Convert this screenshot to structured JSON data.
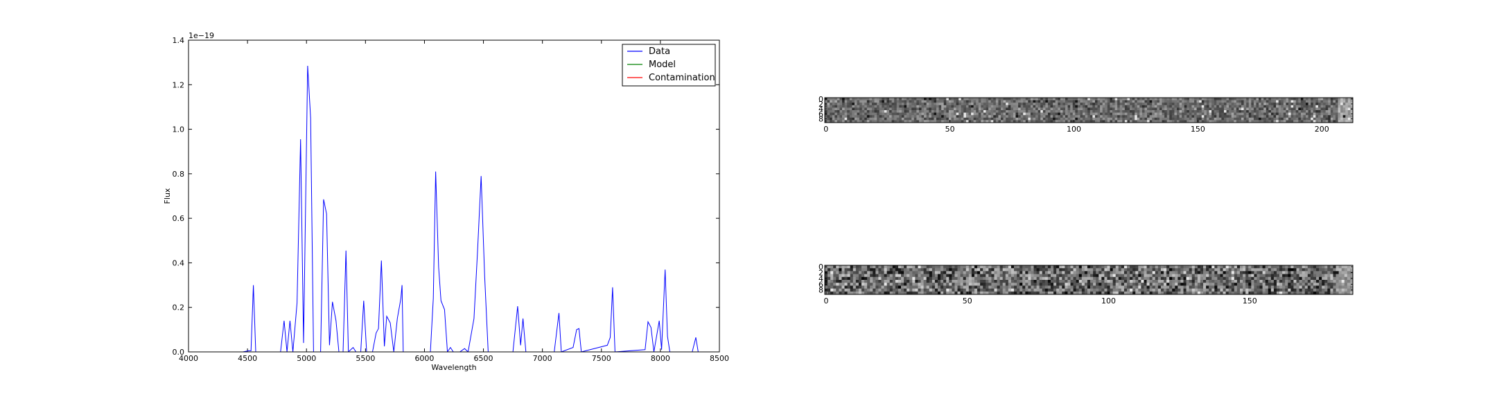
{
  "chart_data": [
    {
      "type": "line",
      "title": "",
      "xlabel": "Wavelength",
      "ylabel": "Flux",
      "offset_text": "1e−19",
      "xlim": [
        4000,
        8500
      ],
      "ylim": [
        0,
        1.4
      ],
      "x_ticks": [
        4000,
        4500,
        5000,
        5500,
        6000,
        6500,
        7000,
        7500,
        8000,
        8500
      ],
      "y_ticks": [
        0.0,
        0.2,
        0.4,
        0.6,
        0.8,
        1.0,
        1.2,
        1.4
      ],
      "x_tick_labels": [
        "4000",
        "4500",
        "5000",
        "5500",
        "6000",
        "6500",
        "7000",
        "7500",
        "8000",
        "8500"
      ],
      "y_tick_labels": [
        "0.0",
        "0.2",
        "0.4",
        "0.6",
        "0.8",
        "1.0",
        "1.2",
        "1.4"
      ],
      "grid": false,
      "legend_position": "top-right",
      "legend": [
        {
          "label": "Data",
          "color": "#0000ff"
        },
        {
          "label": "Model",
          "color": "#008000"
        },
        {
          "label": "Contamination",
          "color": "#ff0000"
        }
      ],
      "series": [
        {
          "name": "Data",
          "color": "#0000ff",
          "points": [
            [
              4460,
              0
            ],
            [
              4510,
              0.005
            ],
            [
              4530,
              0.005
            ],
            [
              4550,
              0.3
            ],
            [
              4570,
              0
            ],
            [
              4780,
              0
            ],
            [
              4810,
              0.14
            ],
            [
              4835,
              0
            ],
            [
              4860,
              0.14
            ],
            [
              4885,
              0
            ],
            [
              4920,
              0.22
            ],
            [
              4950,
              0.955
            ],
            [
              4975,
              0.04
            ],
            [
              5010,
              1.285
            ],
            [
              5035,
              1.05
            ],
            [
              5060,
              0
            ],
            [
              5120,
              0
            ],
            [
              5145,
              0.685
            ],
            [
              5170,
              0.62
            ],
            [
              5195,
              0.03
            ],
            [
              5220,
              0.225
            ],
            [
              5250,
              0.14
            ],
            [
              5275,
              0
            ],
            [
              5310,
              0
            ],
            [
              5335,
              0.455
            ],
            [
              5355,
              0
            ],
            [
              5395,
              0.02
            ],
            [
              5420,
              0
            ],
            [
              5460,
              0
            ],
            [
              5485,
              0.23
            ],
            [
              5510,
              0
            ],
            [
              5560,
              0
            ],
            [
              5590,
              0.085
            ],
            [
              5610,
              0.105
            ],
            [
              5635,
              0.41
            ],
            [
              5660,
              0.025
            ],
            [
              5680,
              0.16
            ],
            [
              5710,
              0.13
            ],
            [
              5740,
              0
            ],
            [
              5770,
              0.15
            ],
            [
              5800,
              0.24
            ],
            [
              5810,
              0.3
            ],
            [
              5820,
              0
            ],
            [
              6050,
              0
            ],
            [
              6075,
              0.24
            ],
            [
              6095,
              0.81
            ],
            [
              6120,
              0.38
            ],
            [
              6140,
              0.23
            ],
            [
              6170,
              0.19
            ],
            [
              6195,
              0
            ],
            [
              6220,
              0.02
            ],
            [
              6245,
              0
            ],
            [
              6300,
              0
            ],
            [
              6340,
              0.015
            ],
            [
              6370,
              0
            ],
            [
              6420,
              0.15
            ],
            [
              6450,
              0.45
            ],
            [
              6480,
              0.79
            ],
            [
              6510,
              0.34
            ],
            [
              6540,
              0
            ],
            [
              6750,
              0
            ],
            [
              6790,
              0.205
            ],
            [
              6815,
              0.03
            ],
            [
              6835,
              0.15
            ],
            [
              6860,
              0
            ],
            [
              7100,
              0
            ],
            [
              7140,
              0.175
            ],
            [
              7160,
              0
            ],
            [
              7260,
              0.02
            ],
            [
              7290,
              0.1
            ],
            [
              7310,
              0.105
            ],
            [
              7330,
              0
            ],
            [
              7550,
              0.03
            ],
            [
              7575,
              0.065
            ],
            [
              7595,
              0.29
            ],
            [
              7615,
              0
            ],
            [
              7870,
              0.01
            ],
            [
              7895,
              0.135
            ],
            [
              7920,
              0.11
            ],
            [
              7945,
              0
            ],
            [
              7990,
              0.14
            ],
            [
              8010,
              0.01
            ],
            [
              8040,
              0.37
            ],
            [
              8060,
              0.07
            ],
            [
              8080,
              0
            ],
            [
              8270,
              0
            ],
            [
              8300,
              0.065
            ],
            [
              8320,
              0
            ],
            [
              8500,
              0
            ]
          ]
        }
      ]
    },
    {
      "type": "heatmap",
      "colormap": "gray",
      "x_ticks": [
        0,
        50,
        100,
        150,
        200
      ],
      "x_tick_labels": [
        "0",
        "50",
        "100",
        "150",
        "200"
      ],
      "xlim": [
        0,
        213
      ],
      "y_ticks": [
        0,
        2,
        4,
        6,
        8
      ],
      "y_tick_labels": [
        "0",
        "2",
        "4",
        "6",
        "8"
      ],
      "ylim": [
        0,
        10
      ]
    },
    {
      "type": "heatmap",
      "colormap": "gray",
      "x_ticks": [
        0,
        50,
        100,
        150
      ],
      "x_tick_labels": [
        "0",
        "50",
        "100",
        "150"
      ],
      "xlim": [
        0,
        187
      ],
      "y_ticks": [
        0,
        2,
        4,
        6,
        8
      ],
      "y_tick_labels": [
        "0",
        "2",
        "4",
        "6",
        "8"
      ],
      "ylim": [
        0,
        10
      ]
    }
  ]
}
